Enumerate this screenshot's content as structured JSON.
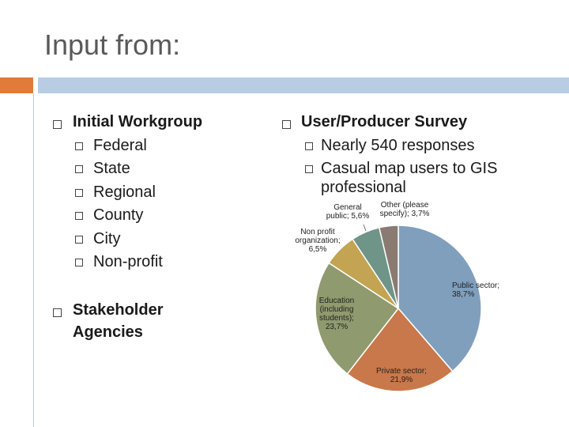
{
  "slide": {
    "title": "Input from:",
    "left": {
      "item1": "Initial Workgroup",
      "subitems": [
        "Federal",
        "State",
        "Regional",
        "County",
        "City",
        "Non-profit"
      ],
      "item2_line1": "Stakeholder",
      "item2_line2": "Agencies"
    },
    "right": {
      "item1": "User/Producer Survey",
      "sub1": "Nearly 540 responses",
      "sub2_line1": "Casual map users to GIS",
      "sub2_line2": "professional"
    }
  },
  "colors": {
    "accent_orange": "#e07b39",
    "accent_blue": "#b8cce4",
    "title_gray": "#595959"
  },
  "chart_data": {
    "type": "pie",
    "slices": [
      {
        "label": "Public sector; 38,7%",
        "value": 38.7,
        "color": "#7f9fbd"
      },
      {
        "label": "Private sector; 21,9%",
        "value": 21.9,
        "color": "#c8784a"
      },
      {
        "label": "Education (including students); 23,7%",
        "value": 23.7,
        "color": "#8f9a6e"
      },
      {
        "label": "Non profit organization; 6,5%",
        "value": 6.5,
        "color": "#c2a452"
      },
      {
        "label": "General public; 5,6%",
        "value": 5.6,
        "color": "#6f9488"
      },
      {
        "label": "Other (please specify); 3,7%",
        "value": 3.7,
        "color": "#8a7b72"
      }
    ],
    "label_lines": [
      [
        "Public sector;",
        "38,7%"
      ],
      [
        "Private sector;",
        "21,9%"
      ],
      [
        "Education",
        "(including",
        "students);",
        "23,7%"
      ],
      [
        "Non profit",
        "organization;",
        "6,5%"
      ],
      [
        "General",
        "public; 5,6%"
      ],
      [
        "Other (please",
        "specify); 3,7%"
      ]
    ]
  }
}
